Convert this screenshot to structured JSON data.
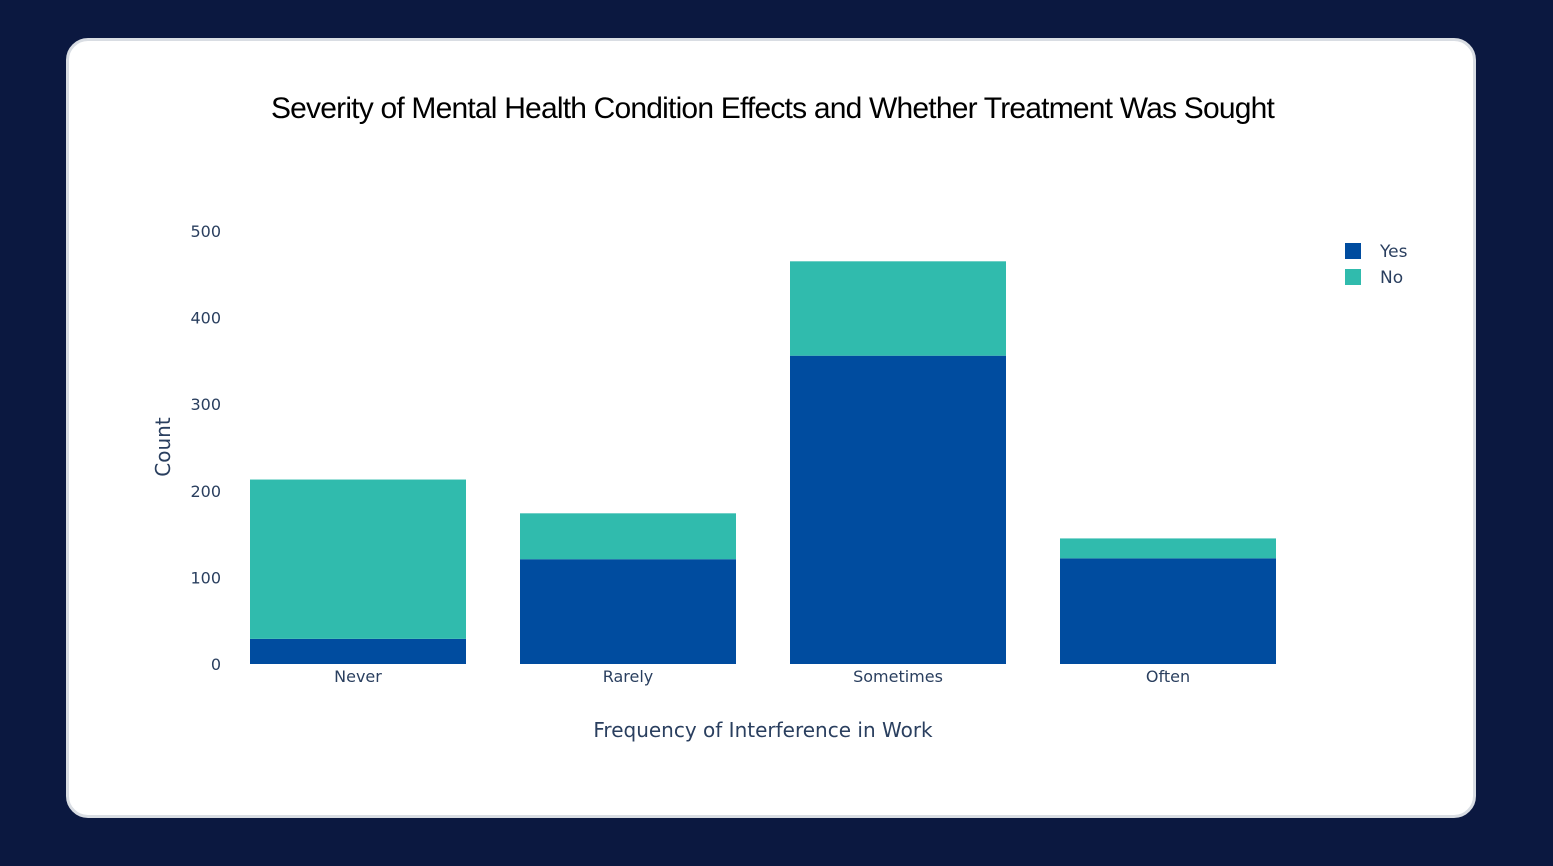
{
  "chart_data": {
    "type": "bar",
    "barmode": "stack",
    "title": "Severity of Mental Health Condition Effects and Whether Treatment Was Sought",
    "xlabel": "Frequency of Interference in Work",
    "ylabel": "Count",
    "categories": [
      "Never",
      "Rarely",
      "Sometimes",
      "Often"
    ],
    "series": [
      {
        "name": "Yes",
        "color": "#004c9f",
        "values": [
          29,
          121,
          356,
          122
        ]
      },
      {
        "name": "No",
        "color": "#30bbad",
        "values": [
          184,
          53,
          109,
          23
        ]
      }
    ],
    "ylim": [
      0,
      500
    ],
    "yticks": [
      "0",
      "100",
      "200",
      "300",
      "400",
      "500"
    ],
    "grid": false,
    "legend_position": "top-right"
  }
}
